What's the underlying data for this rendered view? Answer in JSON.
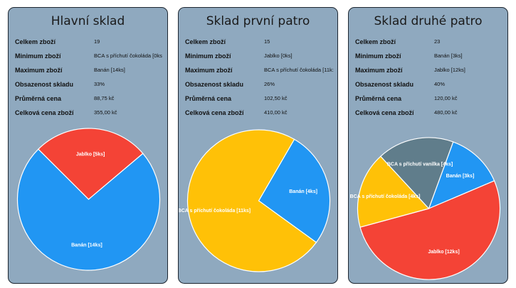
{
  "stat_labels": [
    "Celkem zboží",
    "Minimum zboží",
    "Maximum zboží",
    "Obsazenost skladu",
    "Průměrná cena",
    "Celková cena zboží"
  ],
  "panels": [
    {
      "title": "Hlavní sklad",
      "stats": [
        "19",
        "BCA s příchutí čokoláda [0ks",
        "Banán [14ks]",
        "33%",
        "88,75 kč",
        "355,00 kč"
      ],
      "chart_data": {
        "type": "pie",
        "slices": [
          {
            "label": "Jablko [5ks]",
            "value": 5,
            "color": "#f44336"
          },
          {
            "label": "Banán [14ks]",
            "value": 14,
            "color": "#2196f3"
          }
        ]
      }
    },
    {
      "title": "Sklad první patro",
      "stats": [
        "15",
        "Jablko [0ks]",
        "BCA s příchutí čokoláda [11k:",
        "26%",
        "102,50 kč",
        "410,00 kč"
      ],
      "chart_data": {
        "type": "pie",
        "slices": [
          {
            "label": "Banán [4ks]",
            "value": 4,
            "color": "#2196f3"
          },
          {
            "label": "BCA s příchutí čokoláda [11ks]",
            "value": 11,
            "color": "#ffc107"
          }
        ]
      }
    },
    {
      "title": "Sklad druhé patro",
      "stats": [
        "23",
        "Banán [3ks]",
        "Jablko [12ks]",
        "40%",
        "120,00 kč",
        "480,00 kč"
      ],
      "chart_data": {
        "type": "pie",
        "slices": [
          {
            "label": "Banán [3ks]",
            "value": 3,
            "color": "#2196f3"
          },
          {
            "label": "Jablko [12ks]",
            "value": 12,
            "color": "#f44336"
          },
          {
            "label": "BCA s příchutí čokoláda [4ks]",
            "value": 4,
            "color": "#ffc107"
          },
          {
            "label": "BCA s příchutí vanilka [4ks]",
            "value": 4,
            "color": "#607d8b"
          }
        ]
      }
    }
  ]
}
